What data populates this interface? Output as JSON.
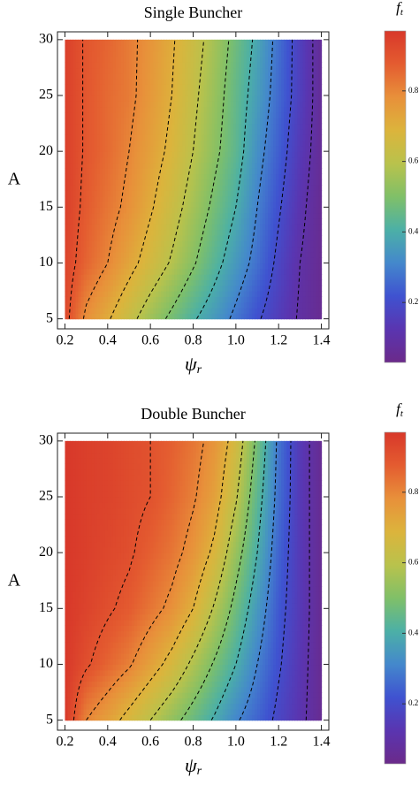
{
  "chart_data": [
    {
      "type": "heatmap",
      "title": "Single Buncher",
      "xlabel": "ψ",
      "xlabel_subscript": "r",
      "ylabel": "A",
      "x": [
        0.2,
        0.3,
        0.4,
        0.5,
        0.6,
        0.7,
        0.8,
        0.9,
        1.0,
        1.1,
        1.2,
        1.3,
        1.4
      ],
      "y": [
        5,
        10,
        15,
        20,
        25,
        30
      ],
      "z": [
        [
          0.93,
          0.78,
          0.71,
          0.63,
          0.55,
          0.48,
          0.41,
          0.35,
          0.28,
          0.21,
          0.15,
          0.09,
          0.05
        ],
        [
          0.94,
          0.86,
          0.8,
          0.73,
          0.66,
          0.59,
          0.51,
          0.43,
          0.35,
          0.27,
          0.18,
          0.1,
          0.05
        ],
        [
          0.95,
          0.88,
          0.83,
          0.78,
          0.71,
          0.64,
          0.56,
          0.48,
          0.4,
          0.3,
          0.21,
          0.12,
          0.05
        ],
        [
          0.95,
          0.89,
          0.85,
          0.8,
          0.74,
          0.68,
          0.6,
          0.52,
          0.44,
          0.33,
          0.24,
          0.14,
          0.06
        ],
        [
          0.95,
          0.89,
          0.85,
          0.82,
          0.76,
          0.7,
          0.62,
          0.54,
          0.45,
          0.36,
          0.26,
          0.16,
          0.06
        ],
        [
          0.95,
          0.89,
          0.86,
          0.82,
          0.77,
          0.71,
          0.64,
          0.56,
          0.47,
          0.38,
          0.27,
          0.16,
          0.06
        ]
      ],
      "contour_levels": [
        0.1,
        0.2,
        0.3,
        0.4,
        0.5,
        0.6,
        0.7,
        0.8,
        0.9
      ],
      "xlim": [
        0.165,
        1.435
      ],
      "ylim": [
        4.1,
        30.7
      ],
      "xticks": [
        0.2,
        0.4,
        0.6,
        0.8,
        {
          "value": 1,
          "label": "1.0"
        },
        1.2,
        1.4
      ],
      "yticks": [
        5,
        10,
        15,
        20,
        25,
        30
      ],
      "colorbar_label": "f",
      "colorbar_label_subscript": "t",
      "zlim": [
        0.03,
        0.97
      ],
      "zticks": [
        0.2,
        0.4,
        0.6,
        0.8
      ],
      "colors": [
        "#6b2a8a",
        "#5a35b0",
        "#3f52d0",
        "#4488cc",
        "#4cb0a6",
        "#80c068",
        "#b9c24c",
        "#dcb43c",
        "#e8903a",
        "#e45c30",
        "#d8382a"
      ]
    },
    {
      "type": "heatmap",
      "title": "Double Buncher",
      "xlabel": "ψ",
      "xlabel_subscript": "r",
      "ylabel": "A",
      "x": [
        0.2,
        0.3,
        0.4,
        0.5,
        0.6,
        0.7,
        0.8,
        0.9,
        1.0,
        1.1,
        1.2,
        1.3,
        1.4
      ],
      "y": [
        5,
        10,
        15,
        20,
        25,
        30
      ],
      "z": [
        [
          0.97,
          0.8,
          0.74,
          0.67,
          0.6,
          0.53,
          0.46,
          0.39,
          0.31,
          0.25,
          0.18,
          0.12,
          0.05
        ],
        [
          0.97,
          0.91,
          0.86,
          0.81,
          0.74,
          0.67,
          0.58,
          0.49,
          0.4,
          0.3,
          0.21,
          0.13,
          0.05
        ],
        [
          0.97,
          0.94,
          0.91,
          0.88,
          0.83,
          0.78,
          0.7,
          0.59,
          0.47,
          0.35,
          0.23,
          0.14,
          0.05
        ],
        [
          0.97,
          0.95,
          0.93,
          0.91,
          0.87,
          0.83,
          0.77,
          0.68,
          0.54,
          0.4,
          0.25,
          0.14,
          0.05
        ],
        [
          0.97,
          0.95,
          0.94,
          0.92,
          0.9,
          0.86,
          0.81,
          0.74,
          0.61,
          0.44,
          0.27,
          0.14,
          0.05
        ],
        [
          0.97,
          0.95,
          0.94,
          0.92,
          0.9,
          0.87,
          0.83,
          0.77,
          0.66,
          0.48,
          0.28,
          0.14,
          0.05
        ]
      ],
      "contour_levels": [
        0.1,
        0.2,
        0.3,
        0.4,
        0.5,
        0.6,
        0.7,
        0.8,
        0.9
      ],
      "xlim": [
        0.165,
        1.435
      ],
      "ylim": [
        4.1,
        30.7
      ],
      "xticks": [
        0.2,
        0.4,
        0.6,
        0.8,
        {
          "value": 1,
          "label": "1.0"
        },
        1.2,
        1.4
      ],
      "yticks": [
        5,
        10,
        15,
        20,
        25,
        30
      ],
      "colorbar_label": "f",
      "colorbar_label_subscript": "t",
      "zlim": [
        0.03,
        0.97
      ],
      "zticks": [
        0.2,
        0.4,
        0.6,
        0.8
      ],
      "colors": [
        "#6b2a8a",
        "#5a35b0",
        "#3f52d0",
        "#4488cc",
        "#4cb0a6",
        "#80c068",
        "#b9c24c",
        "#dcb43c",
        "#e8903a",
        "#e45c30",
        "#d8382a"
      ]
    }
  ]
}
